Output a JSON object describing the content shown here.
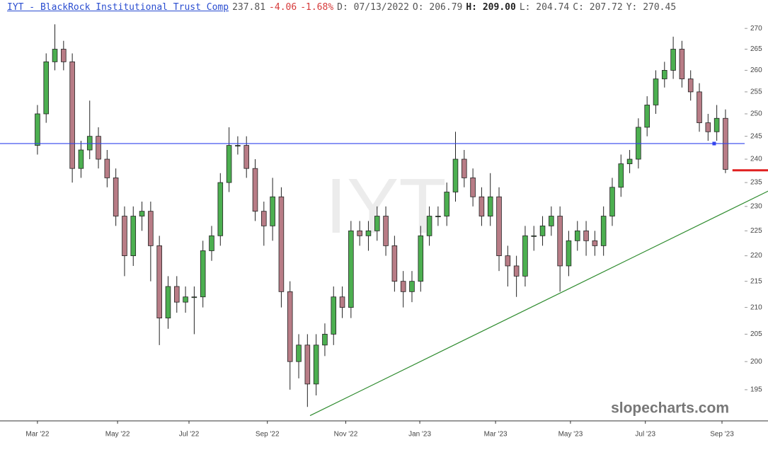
{
  "chart_data": {
    "type": "candlestick",
    "header": {
      "title": "IYT - BlackRock Institutional Trust Comp",
      "last": "237.81",
      "change": "-4.06",
      "change_pct": "-1.68%",
      "date": "D: 07/13/2022",
      "open": "O: 206.79",
      "high": "H: 209.00",
      "low": "L: 204.74",
      "close": "C: 207.72",
      "year_high": "Y: 270.45"
    },
    "watermark": "IYT",
    "credit": "slopecharts.com",
    "log_y": true,
    "up_color": "#4caf50",
    "down_color": "#b87c86",
    "xlim": [
      -4.3,
      81.2
    ],
    "ylim": [
      189.6,
      277
    ],
    "xticks": [
      {
        "value": 0,
        "label": "Mar '22"
      },
      {
        "value": 9.2,
        "label": "May '22"
      },
      {
        "value": 17.4,
        "label": "Jul '22"
      },
      {
        "value": 26.4,
        "label": "Sep '22"
      },
      {
        "value": 35.4,
        "label": "Nov '22"
      },
      {
        "value": 43.9,
        "label": "Jan '23"
      },
      {
        "value": 52.6,
        "label": "Mar '23"
      },
      {
        "value": 61.2,
        "label": "May '23"
      },
      {
        "value": 69.8,
        "label": "Jul '23"
      },
      {
        "value": 78.6,
        "label": "Sep '23"
      }
    ],
    "yticks": [
      195,
      200,
      205,
      210,
      215,
      220,
      225,
      230,
      235,
      240,
      245,
      250,
      255,
      260,
      265,
      270
    ],
    "open": [
      243,
      250,
      262,
      265,
      262,
      238,
      242,
      245,
      240,
      236,
      228,
      220,
      228,
      229,
      222,
      208,
      214,
      211,
      212,
      212,
      221,
      224,
      235,
      243,
      243,
      238,
      229,
      226,
      232,
      213,
      200,
      203,
      196,
      203,
      205,
      212,
      210,
      225,
      224,
      225,
      228,
      222,
      215,
      213,
      215,
      224,
      228,
      228,
      233,
      240,
      236,
      232,
      228,
      232,
      220,
      218,
      216,
      224,
      224,
      226,
      228,
      218,
      223,
      225,
      223,
      222,
      228,
      234,
      239,
      240,
      247,
      252,
      258,
      260,
      265,
      258,
      255,
      248,
      246,
      249
    ],
    "high": [
      252,
      264,
      271,
      267,
      264,
      244,
      253,
      247,
      242,
      238,
      230,
      230,
      231,
      231,
      224,
      216,
      216,
      214,
      214,
      223,
      226,
      237,
      247,
      245,
      245,
      240,
      231,
      236,
      234,
      215,
      205,
      205,
      205,
      207,
      214,
      214,
      227,
      227,
      227,
      230,
      230,
      224,
      217,
      217,
      226,
      230,
      230,
      235,
      246,
      242,
      238,
      234,
      237,
      234,
      222,
      220,
      226,
      226,
      228,
      230,
      230,
      225,
      227,
      227,
      225,
      230,
      236,
      241,
      242,
      249,
      254,
      260,
      262,
      268,
      267,
      260,
      257,
      250,
      252,
      251
    ],
    "low": [
      241,
      248,
      260,
      260,
      235,
      236,
      240,
      238,
      234,
      226,
      216,
      218,
      225,
      215,
      203,
      206,
      209,
      209,
      205,
      210,
      219,
      222,
      233,
      241,
      236,
      227,
      222,
      223,
      210,
      195,
      197,
      192,
      194,
      201,
      203,
      208,
      208,
      222,
      221,
      223,
      220,
      213,
      210,
      211,
      213,
      222,
      226,
      226,
      231,
      234,
      230,
      226,
      226,
      217,
      214,
      212,
      214,
      221,
      222,
      224,
      213,
      216,
      221,
      220,
      220,
      220,
      226,
      232,
      237,
      238,
      245,
      250,
      256,
      258,
      256,
      253,
      246,
      244,
      244,
      237
    ],
    "close": [
      250,
      262,
      265,
      262,
      238,
      242,
      245,
      240,
      236,
      228,
      220,
      228,
      229,
      222,
      208,
      214,
      211,
      212,
      212,
      221,
      224,
      235,
      243,
      243,
      238,
      229,
      226,
      232,
      213,
      200,
      203,
      196,
      203,
      205,
      212,
      210,
      225,
      224,
      225,
      228,
      222,
      215,
      213,
      215,
      224,
      228,
      228,
      233,
      240,
      236,
      232,
      228,
      232,
      220,
      218,
      216,
      224,
      224,
      226,
      228,
      218,
      223,
      225,
      223,
      222,
      228,
      234,
      239,
      240,
      247,
      252,
      258,
      260,
      265,
      258,
      255,
      248,
      246,
      249,
      237.8
    ],
    "lines": [
      {
        "color": "#3344ee",
        "x": [
          -4.3,
          81.2
        ],
        "y": [
          243.4,
          243.4
        ]
      },
      {
        "color": "#2e8b2e",
        "x": [
          31.3,
          83.9
        ],
        "y": [
          190.5,
          233.2
        ]
      },
      {
        "color": "#e02020",
        "x": [
          79.8,
          83.9
        ],
        "y": [
          237.6,
          237.6
        ]
      }
    ],
    "marker": {
      "color": "#3344ee",
      "x": 77.7,
      "y": 243.4
    }
  }
}
